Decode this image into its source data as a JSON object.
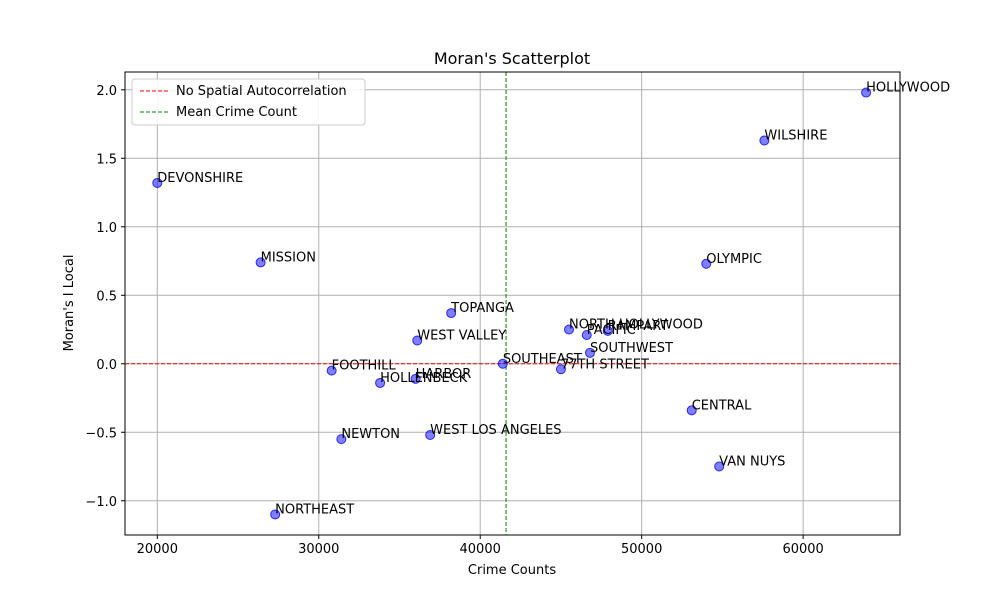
{
  "chart_data": {
    "type": "scatter",
    "title": "Moran's Scatterplot",
    "xlabel": "Crime Counts",
    "ylabel": "Moran's I Local",
    "xlim": [
      18000,
      66000
    ],
    "ylim": [
      -1.25,
      2.13
    ],
    "xticks": [
      20000,
      30000,
      40000,
      50000,
      60000
    ],
    "yticks": [
      -1.0,
      -0.5,
      0.0,
      0.5,
      1.0,
      1.5,
      2.0
    ],
    "xtick_labels": [
      "20000",
      "30000",
      "40000",
      "50000",
      "60000"
    ],
    "ytick_labels": [
      "−1.0",
      "−0.5",
      "0.0",
      "0.5",
      "1.0",
      "1.5",
      "2.0"
    ],
    "grid": true,
    "legend_position": "top-left",
    "point_color": "#0000ff",
    "points": [
      {
        "label": "HOLLYWOOD",
        "x": 63900,
        "y": 1.98
      },
      {
        "label": "WILSHIRE",
        "x": 57600,
        "y": 1.63
      },
      {
        "label": "DEVONSHIRE",
        "x": 20000,
        "y": 1.32
      },
      {
        "label": "MISSION",
        "x": 26400,
        "y": 0.74
      },
      {
        "label": "OLYMPIC",
        "x": 54000,
        "y": 0.73
      },
      {
        "label": "TOPANGA",
        "x": 38200,
        "y": 0.37
      },
      {
        "label": "NORTH HOLLYWOOD",
        "x": 45500,
        "y": 0.25
      },
      {
        "label": "RAMPART",
        "x": 47900,
        "y": 0.24
      },
      {
        "label": "PACIFIC",
        "x": 46600,
        "y": 0.21
      },
      {
        "label": "WEST VALLEY",
        "x": 36100,
        "y": 0.17
      },
      {
        "label": "SOUTHWEST",
        "x": 46800,
        "y": 0.08
      },
      {
        "label": "SOUTHEAST",
        "x": 41400,
        "y": 0.0
      },
      {
        "label": "77TH STREET",
        "x": 45000,
        "y": -0.04
      },
      {
        "label": "FOOTHILL",
        "x": 30800,
        "y": -0.05
      },
      {
        "label": "HARBOR",
        "x": 36000,
        "y": -0.11
      },
      {
        "label": "HOLLENBECK",
        "x": 33800,
        "y": -0.14
      },
      {
        "label": "CENTRAL",
        "x": 53100,
        "y": -0.34
      },
      {
        "label": "WEST LOS ANGELES",
        "x": 36900,
        "y": -0.52
      },
      {
        "label": "NEWTON",
        "x": 31400,
        "y": -0.55
      },
      {
        "label": "VAN NUYS",
        "x": 54800,
        "y": -0.75
      },
      {
        "label": "NORTHEAST",
        "x": 27300,
        "y": -1.1
      }
    ],
    "reference_lines": [
      {
        "name": "No Spatial Autocorrelation",
        "orientation": "horizontal",
        "value": 0.0,
        "color": "#ff0000",
        "style": "dashed"
      },
      {
        "name": "Mean Crime Count",
        "orientation": "vertical",
        "value": 41600,
        "color": "#008000",
        "style": "dashed"
      }
    ]
  }
}
